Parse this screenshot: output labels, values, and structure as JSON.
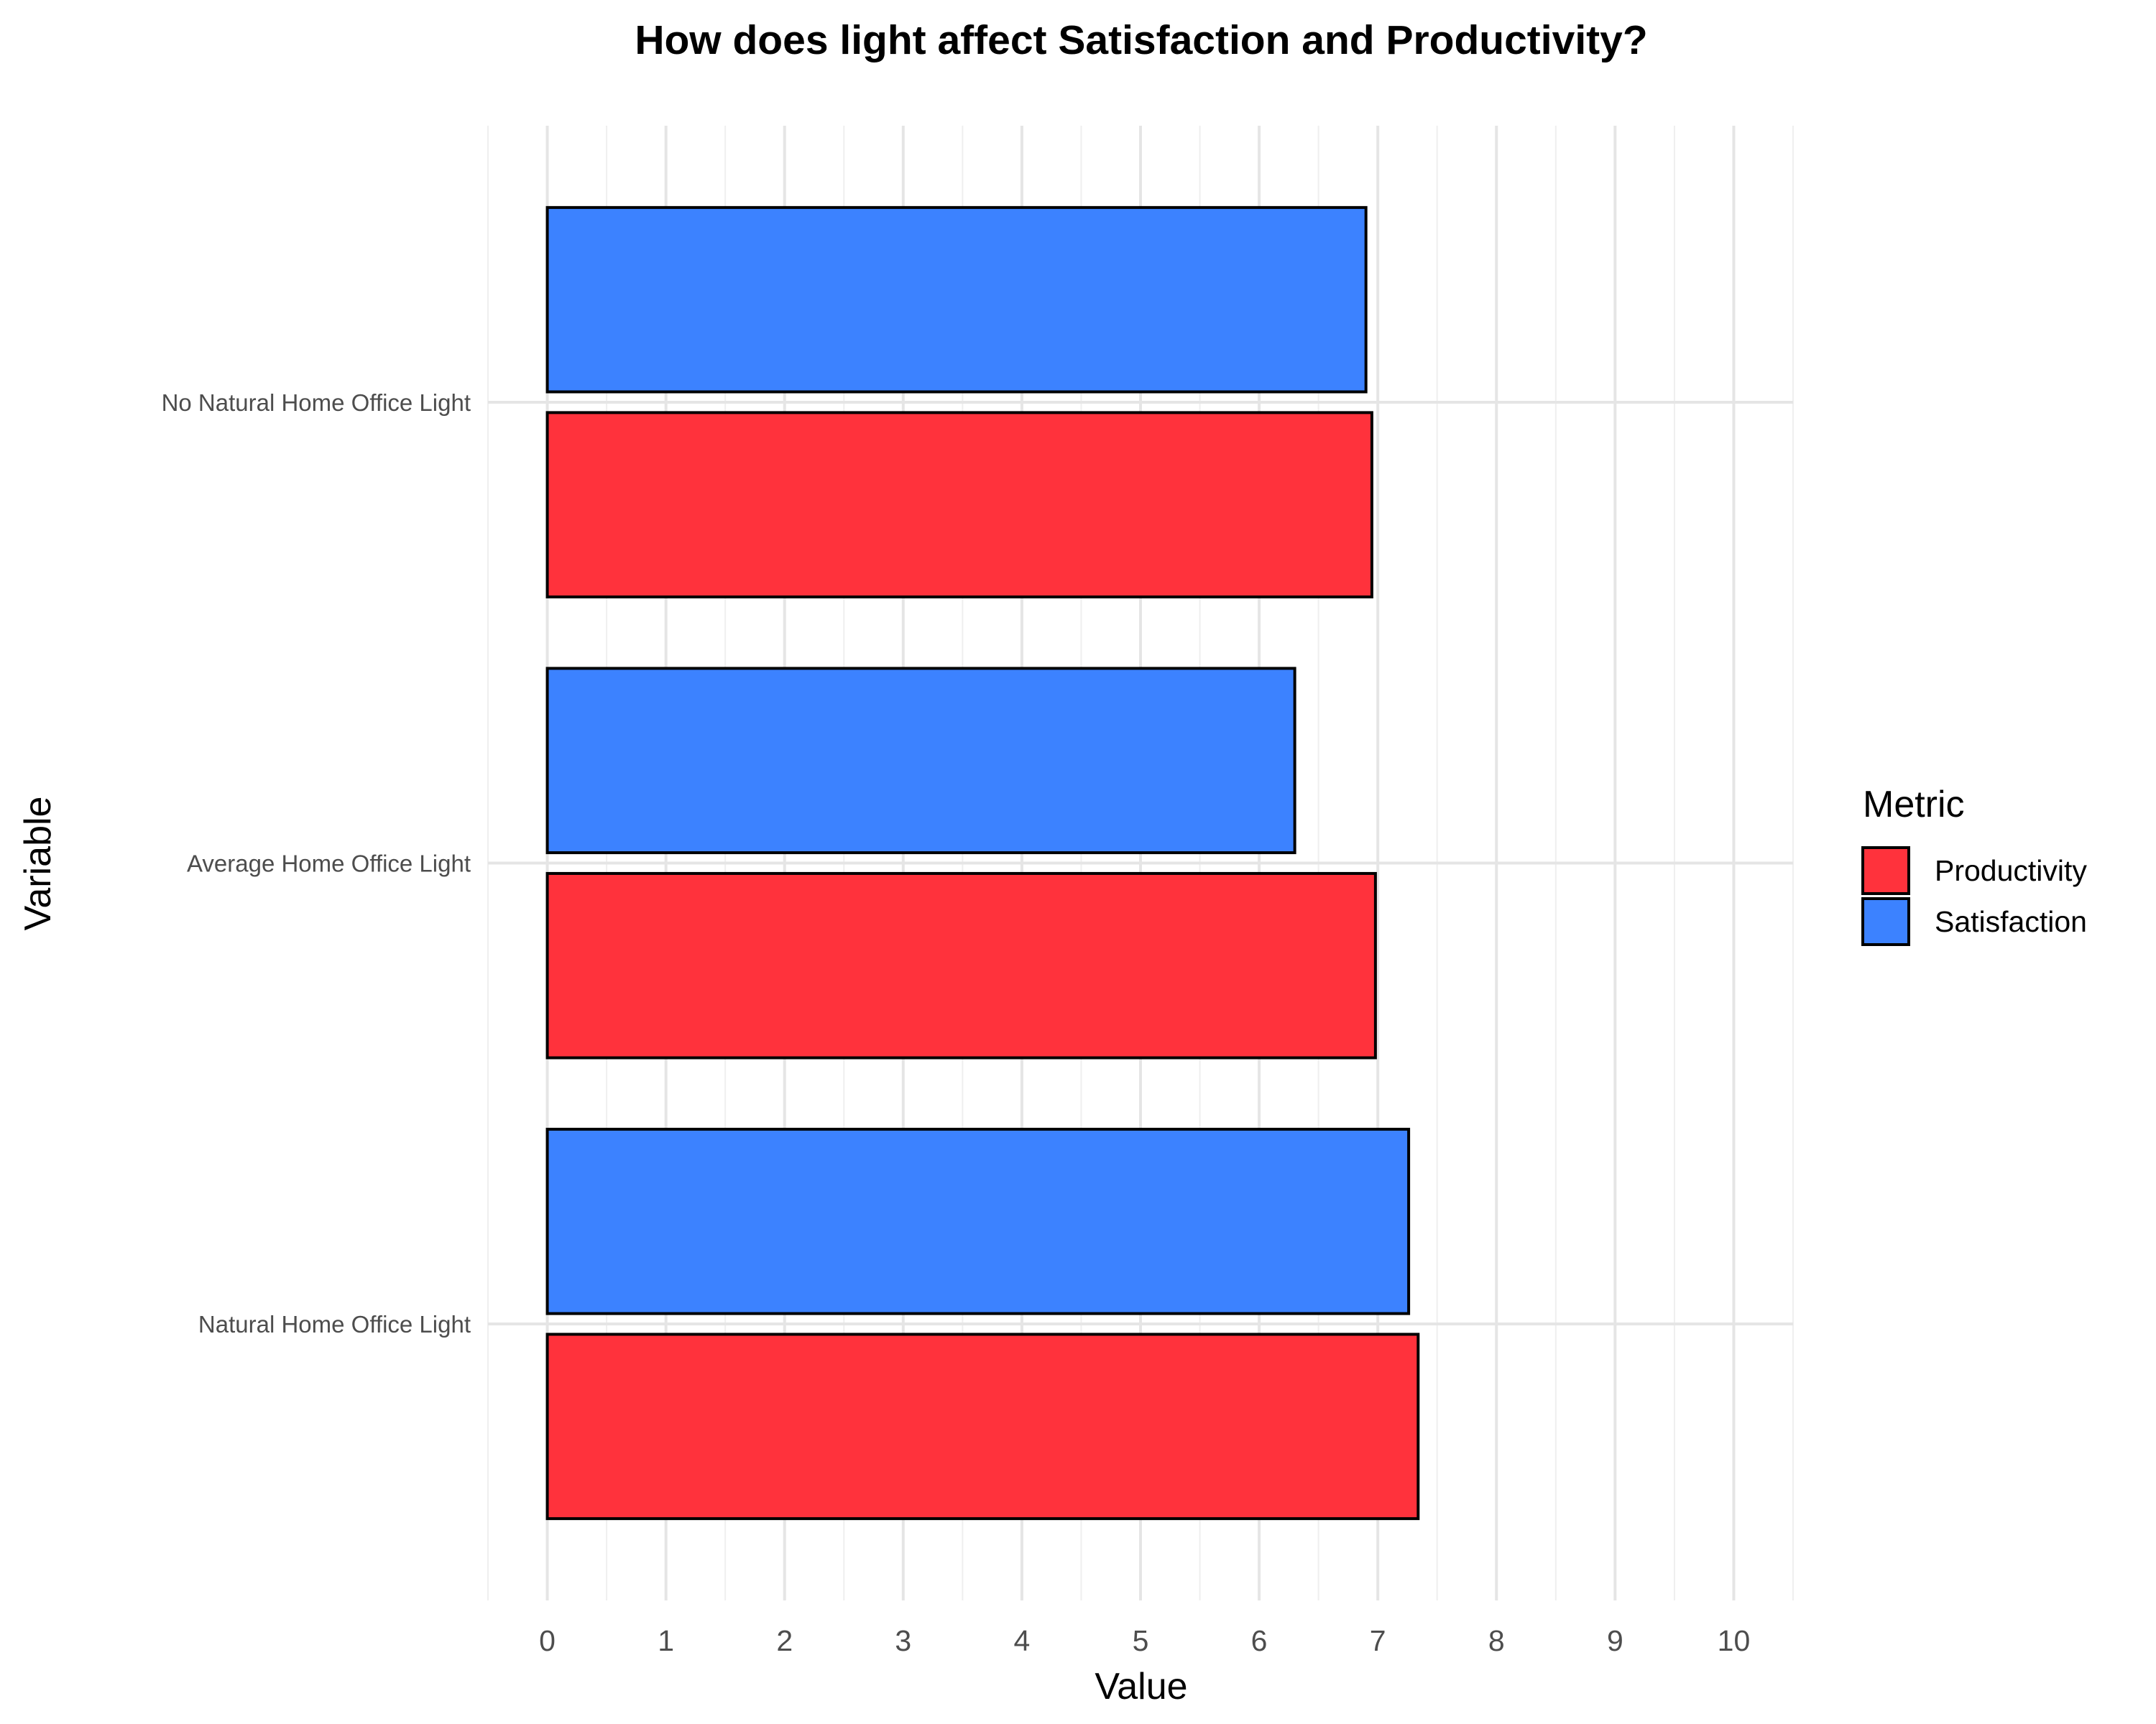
{
  "chart_data": {
    "type": "bar",
    "orientation": "horizontal",
    "title": "How does light affect Satisfaction and Productivity?",
    "xlabel": "Value",
    "ylabel": "Variable",
    "categories": [
      "Natural Home Office Light",
      "Average Home Office Light",
      "No Natural Home Office Light"
    ],
    "series": [
      {
        "name": "Productivity",
        "color": "#ff323c",
        "values": [
          7.34,
          6.98,
          6.95
        ]
      },
      {
        "name": "Satisfaction",
        "color": "#3c82ff",
        "values": [
          7.26,
          6.3,
          6.9
        ]
      }
    ],
    "xlim": [
      -0.5,
      10.5
    ],
    "xticks": [
      0,
      1,
      2,
      3,
      4,
      5,
      6,
      7,
      8,
      9,
      10
    ],
    "grid": true,
    "legend": {
      "title": "Metric",
      "position": "right"
    }
  }
}
